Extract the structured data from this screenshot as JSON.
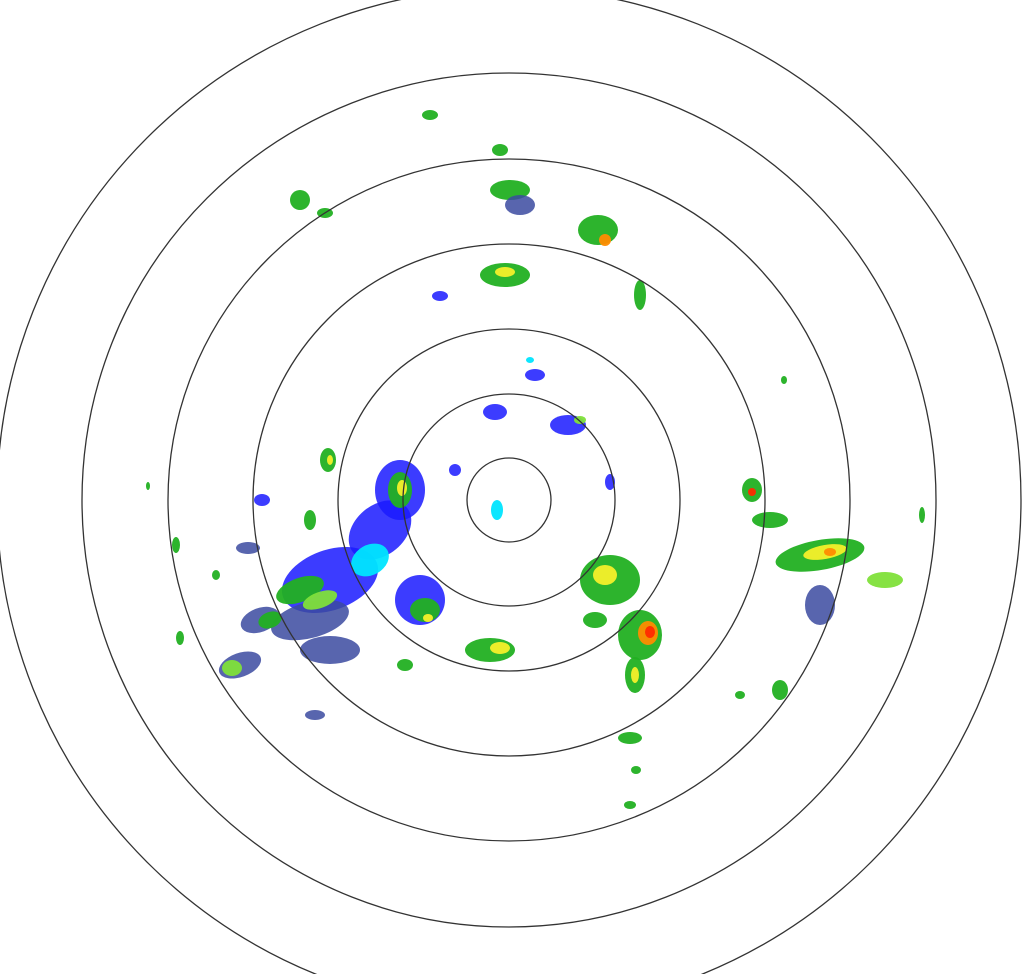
{
  "radar": {
    "type": "reflectivity-ppi",
    "range_ring_count": 7,
    "colors": {
      "ring": "#333333",
      "background": "#ffffff",
      "light_cyan": "#00e5ff",
      "blue": "#1a1aff",
      "slate": "#3b4aa0",
      "green": "#22b022",
      "light_green": "#7fe03a",
      "yellow": "#f5f02a",
      "orange": "#ff8c00",
      "red": "#ff2a00"
    }
  }
}
